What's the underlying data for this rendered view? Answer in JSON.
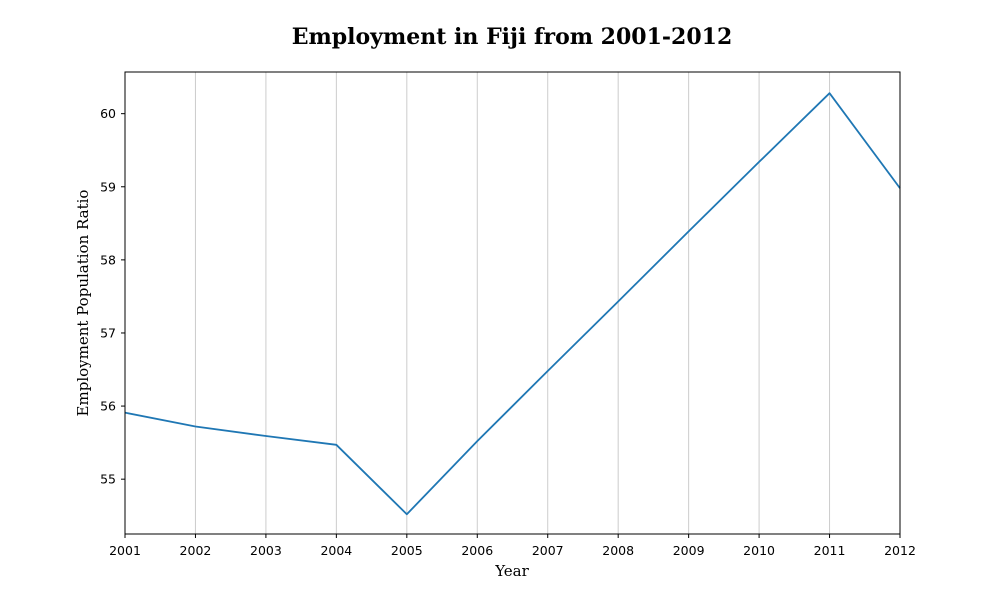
{
  "chart_data": {
    "type": "line",
    "title": "Employment in Fiji from 2001-2012",
    "xlabel": "Year",
    "ylabel": "Employment Population Ratio",
    "x": [
      2001,
      2002,
      2003,
      2004,
      2005,
      2006,
      2007,
      2008,
      2009,
      2010,
      2011,
      2012
    ],
    "series": [
      {
        "values": [
          55.91,
          55.72,
          55.59,
          55.47,
          54.52,
          55.52,
          56.48,
          57.43,
          58.39,
          59.34,
          60.28,
          58.98
        ],
        "color": "#1f77b4"
      }
    ],
    "xlim": [
      2001,
      2012
    ],
    "ylim": [
      54.25,
      60.57
    ],
    "xticks": [
      "2001",
      "2002",
      "2003",
      "2004",
      "2005",
      "2006",
      "2007",
      "2008",
      "2009",
      "2010",
      "2011",
      "2012"
    ],
    "yticks": [
      "55",
      "56",
      "57",
      "58",
      "59",
      "60"
    ],
    "grid": "vertical"
  }
}
